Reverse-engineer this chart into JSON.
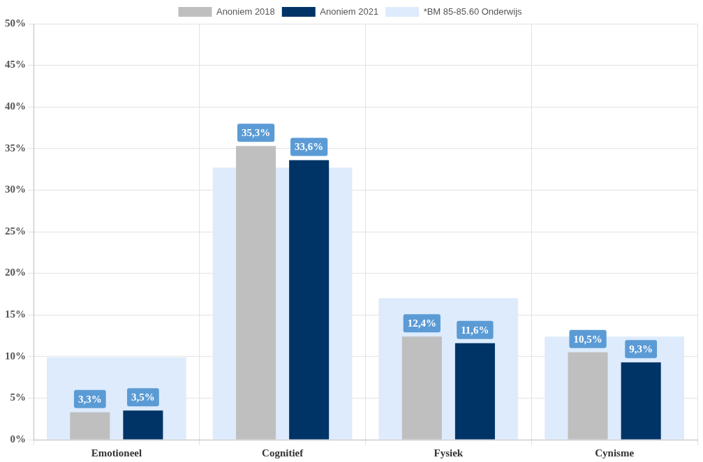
{
  "chart_data": {
    "type": "bar",
    "categories": [
      "Emotioneel",
      "Cognitief",
      "Fysiek",
      "Cynisme"
    ],
    "series": [
      {
        "name": "Anoniem 2018",
        "color": "#bfbfbf",
        "values": [
          3.3,
          35.3,
          12.4,
          10.5
        ],
        "value_labels": [
          "3,3%",
          "35,3%",
          "12,4%",
          "10,5%"
        ]
      },
      {
        "name": "Anoniem 2021",
        "color": "#003366",
        "values": [
          3.5,
          33.6,
          11.6,
          9.3
        ],
        "value_labels": [
          "3,5%",
          "33,6%",
          "11,6%",
          "9,3%"
        ]
      },
      {
        "name": "*BM 85-85.60 Onderwijs",
        "color": "#ddebfc",
        "values": [
          9.9,
          32.7,
          17.0,
          12.4
        ]
      }
    ],
    "ylim": [
      0,
      50
    ],
    "yticks": [
      {
        "value": 0,
        "label": "0%"
      },
      {
        "value": 5,
        "label": "5%"
      },
      {
        "value": 10,
        "label": "10%"
      },
      {
        "value": 15,
        "label": "15%"
      },
      {
        "value": 20,
        "label": "20%"
      },
      {
        "value": 25,
        "label": "25%"
      },
      {
        "value": 30,
        "label": "30%"
      },
      {
        "value": 35,
        "label": "35%"
      },
      {
        "value": 40,
        "label": "40%"
      },
      {
        "value": 45,
        "label": "45%"
      },
      {
        "value": 50,
        "label": "50%"
      }
    ],
    "grid": true,
    "legend": "top"
  }
}
